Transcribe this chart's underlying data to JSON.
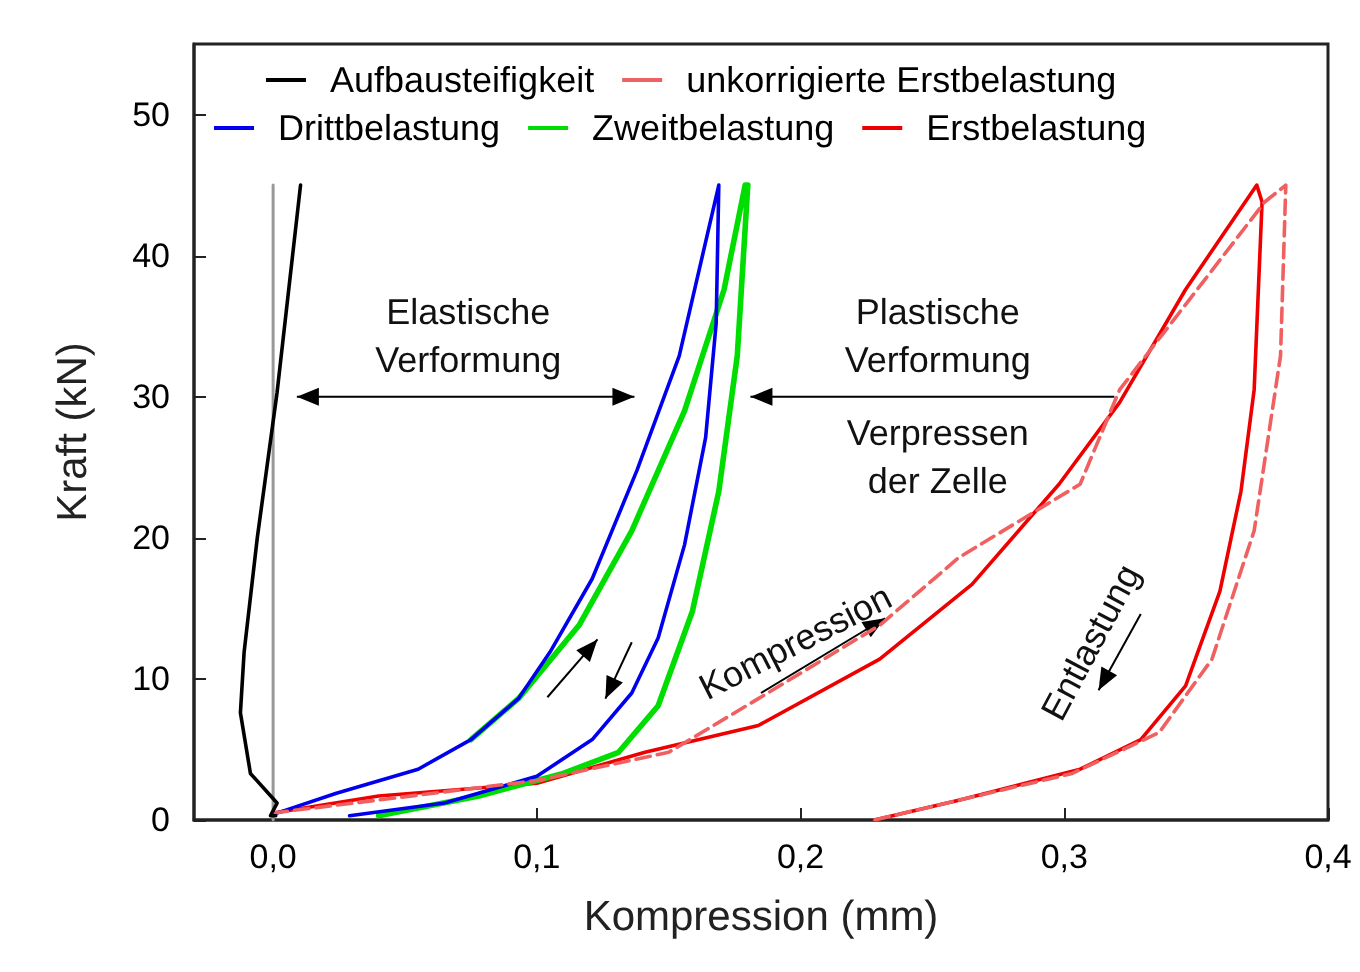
{
  "chart_data": {
    "type": "line",
    "xlabel": "Kompression (mm)",
    "ylabel": "Kraft (kN)",
    "xlim": [
      -0.03,
      0.4
    ],
    "xticks": [
      {
        "value": 0,
        "label": "0,0"
      },
      {
        "value": 0.1,
        "label": "0,1"
      },
      {
        "value": 0.2,
        "label": "0,2"
      },
      {
        "value": 0.3,
        "label": "0,3"
      },
      {
        "value": 0.4,
        "label": "0,4"
      }
    ],
    "ylim": [
      0,
      55
    ],
    "yticks": [
      0,
      10,
      20,
      30,
      40,
      50
    ],
    "grid": false,
    "legend": "top",
    "marker": "none",
    "series": [
      {
        "name": "Aufbausteifigkeit",
        "color": "#000000",
        "x": [
          0.001,
          -0.001,
          0.0015,
          -0.0086,
          -0.0124,
          -0.011,
          -0.006,
          0.0015,
          0.0104
        ],
        "values": [
          0.3,
          0.3,
          1.2,
          3.3,
          7.6,
          11.9,
          20,
          30.3,
          45
        ]
      },
      {
        "name": "unkorrigierte Erstbelastung",
        "color": "#f06060",
        "line_style": "dashed",
        "x": [
          0,
          0.1,
          0.15,
          0.184,
          0.23,
          0.26,
          0.306,
          0.321,
          0.35,
          0.376,
          0.384,
          0.382,
          0.372,
          0.356,
          0.336,
          0.303,
          0.26,
          0.228
        ],
        "values": [
          0.5,
          2.8,
          4.8,
          8.6,
          13.8,
          18.6,
          23.8,
          30.5,
          37.5,
          43.8,
          45,
          32.9,
          20.5,
          11.4,
          6.2,
          3.3,
          1.4,
          0
        ]
      },
      {
        "name": "Drittbelastung",
        "color": "#0000ee",
        "x": [
          0,
          0.024,
          0.055,
          0.075,
          0.093,
          0.105,
          0.121,
          0.138,
          0.154,
          0.169,
          0.168,
          0.164,
          0.156,
          0.146,
          0.136,
          0.121,
          0.1,
          0.065,
          0.029
        ],
        "values": [
          0.4,
          1.9,
          3.6,
          5.7,
          8.6,
          11.9,
          17.1,
          24.8,
          32.9,
          45,
          35.2,
          27.1,
          19.5,
          12.9,
          9,
          5.7,
          3.1,
          1.2,
          0.3
        ]
      },
      {
        "name": "Zweitbelastung",
        "color": "#00dd00",
        "x": [
          0.075,
          0.093,
          0.116,
          0.136,
          0.156,
          0.171,
          0.179,
          0.18,
          0.176,
          0.169,
          0.159,
          0.146,
          0.131,
          0.11,
          0.078,
          0.04
        ],
        "values": [
          5.7,
          8.6,
          13.8,
          20.5,
          29,
          37.6,
          45,
          45,
          32.9,
          23.3,
          14.8,
          8.1,
          4.8,
          3.3,
          1.7,
          0.3
        ]
      },
      {
        "name": "Erstbelastung",
        "color": "#ee0000",
        "x": [
          0,
          0.04,
          0.1,
          0.141,
          0.184,
          0.23,
          0.265,
          0.298,
          0.321,
          0.346,
          0.373,
          0.375,
          0.372,
          0.367,
          0.359,
          0.346,
          0.329,
          0.306,
          0.26,
          0.228
        ],
        "values": [
          0.5,
          1.7,
          2.6,
          4.8,
          6.7,
          11.4,
          16.7,
          23.8,
          29.6,
          37.6,
          45,
          43.8,
          30.5,
          23.3,
          16.2,
          9.5,
          5.7,
          3.6,
          1.4,
          0
        ]
      },
      {
        "color": "#999999",
        "x": [
          0,
          0,
          0
        ],
        "values": [
          0,
          22,
          45
        ]
      }
    ],
    "annotations": [
      "Elastische\nVerformung",
      "Plastische\nVerformung",
      "Verpressen\nder Zelle",
      "Kompression",
      "Entlastung"
    ]
  }
}
